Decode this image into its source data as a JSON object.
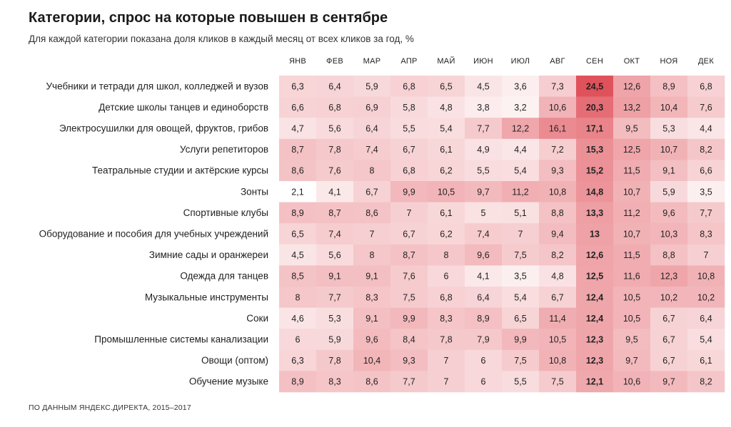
{
  "title": "Категории, спрос на которые повышен в сентябре",
  "subtitle": "Для каждой категории показана доля кликов в каждый месяц от всех кликов за год, %",
  "source": "ПО ДАННЫМ ЯНДЕКС.ДИРЕКТА, 2015–2017",
  "chart_data": {
    "type": "heatmap",
    "months": [
      "ЯНВ",
      "ФЕВ",
      "МАР",
      "АПР",
      "МАЙ",
      "ИЮН",
      "ИЮЛ",
      "АВГ",
      "СЕН",
      "ОКТ",
      "НОЯ",
      "ДЕК"
    ],
    "highlight_month_index": 8,
    "color_low": "#ffffff",
    "color_high": "#e0525b",
    "rows": [
      {
        "category": "Учебники и тетради для школ, колледжей и вузов",
        "labels": [
          "6,3",
          "6,4",
          "5,9",
          "6,8",
          "6,5",
          "4,5",
          "3,6",
          "7,3",
          "24,5",
          "12,6",
          "8,9",
          "6,8"
        ],
        "values": [
          6.3,
          6.4,
          5.9,
          6.8,
          6.5,
          4.5,
          3.6,
          7.3,
          24.5,
          12.6,
          8.9,
          6.8
        ]
      },
      {
        "category": "Детские школы танцев и единоборств",
        "labels": [
          "6,6",
          "6,8",
          "6,9",
          "5,8",
          "4,8",
          "3,8",
          "3,2",
          "10,6",
          "20,3",
          "13,2",
          "10,4",
          "7,6"
        ],
        "values": [
          6.6,
          6.8,
          6.9,
          5.8,
          4.8,
          3.8,
          3.2,
          10.6,
          20.3,
          13.2,
          10.4,
          7.6
        ]
      },
      {
        "category": "Электросушилки для овощей, фруктов, грибов",
        "labels": [
          "4,7",
          "5,6",
          "6,4",
          "5,5",
          "5,4",
          "7,7",
          "12,2",
          "16,1",
          "17,1",
          "9,5",
          "5,3",
          "4,4"
        ],
        "values": [
          4.7,
          5.6,
          6.4,
          5.5,
          5.4,
          7.7,
          12.2,
          16.1,
          17.1,
          9.5,
          5.3,
          4.4
        ]
      },
      {
        "category": "Услуги репетиторов",
        "labels": [
          "8,7",
          "7,8",
          "7,4",
          "6,7",
          "6,1",
          "4,9",
          "4,4",
          "7,2",
          "15,3",
          "12,5",
          "10,7",
          "8,2"
        ],
        "values": [
          8.7,
          7.8,
          7.4,
          6.7,
          6.1,
          4.9,
          4.4,
          7.2,
          15.3,
          12.5,
          10.7,
          8.2
        ]
      },
      {
        "category": "Театральные студии и актёрские курсы",
        "labels": [
          "8,6",
          "7,6",
          "8",
          "6,8",
          "6,2",
          "5,5",
          "5,4",
          "9,3",
          "15,2",
          "11,5",
          "9,1",
          "6,6"
        ],
        "values": [
          8.6,
          7.6,
          8,
          6.8,
          6.2,
          5.5,
          5.4,
          9.3,
          15.2,
          11.5,
          9.1,
          6.6
        ]
      },
      {
        "category": "Зонты",
        "labels": [
          "2,1",
          "4,1",
          "6,7",
          "9,9",
          "10,5",
          "9,7",
          "11,2",
          "10,8",
          "14,8",
          "10,7",
          "5,9",
          "3,5"
        ],
        "values": [
          2.1,
          4.1,
          6.7,
          9.9,
          10.5,
          9.7,
          11.2,
          10.8,
          14.8,
          10.7,
          5.9,
          3.5
        ]
      },
      {
        "category": "Спортивные клубы",
        "labels": [
          "8,9",
          "8,7",
          "8,6",
          "7",
          "6,1",
          "5",
          "5,1",
          "8,8",
          "13,3",
          "11,2",
          "9,6",
          "7,7"
        ],
        "values": [
          8.9,
          8.7,
          8.6,
          7,
          6.1,
          5,
          5.1,
          8.8,
          13.3,
          11.2,
          9.6,
          7.7
        ]
      },
      {
        "category": "Оборудование и пособия для учебных учреждений",
        "labels": [
          "6,5",
          "7,4",
          "7",
          "6,7",
          "6,2",
          "7,4",
          "7",
          "9,4",
          "13",
          "10,7",
          "10,3",
          "8,3"
        ],
        "values": [
          6.5,
          7.4,
          7,
          6.7,
          6.2,
          7.4,
          7,
          9.4,
          13,
          10.7,
          10.3,
          8.3
        ]
      },
      {
        "category": "Зимние сады и оранжереи",
        "labels": [
          "4,5",
          "5,6",
          "8",
          "8,7",
          "8",
          "9,6",
          "7,5",
          "8,2",
          "12,6",
          "11,5",
          "8,8",
          "7"
        ],
        "values": [
          4.5,
          5.6,
          8,
          8.7,
          8,
          9.6,
          7.5,
          8.2,
          12.6,
          11.5,
          8.8,
          7
        ]
      },
      {
        "category": "Одежда для танцев",
        "labels": [
          "8,5",
          "9,1",
          "9,1",
          "7,6",
          "6",
          "4,1",
          "3,5",
          "4,8",
          "12,5",
          "11,6",
          "12,3",
          "10,8"
        ],
        "values": [
          8.5,
          9.1,
          9.1,
          7.6,
          6,
          4.1,
          3.5,
          4.8,
          12.5,
          11.6,
          12.3,
          10.8
        ]
      },
      {
        "category": "Музыкальные инструменты",
        "labels": [
          "8",
          "7,7",
          "8,3",
          "7,5",
          "6,8",
          "6,4",
          "5,4",
          "6,7",
          "12,4",
          "10,5",
          "10,2",
          "10,2"
        ],
        "values": [
          8,
          7.7,
          8.3,
          7.5,
          6.8,
          6.4,
          5.4,
          6.7,
          12.4,
          10.5,
          10.2,
          10.2
        ]
      },
      {
        "category": "Соки",
        "labels": [
          "4,6",
          "5,3",
          "9,1",
          "9,9",
          "8,3",
          "8,9",
          "6,5",
          "11,4",
          "12,4",
          "10,5",
          "6,7",
          "6,4"
        ],
        "values": [
          4.6,
          5.3,
          9.1,
          9.9,
          8.3,
          8.9,
          6.5,
          11.4,
          12.4,
          10.5,
          6.7,
          6.4
        ]
      },
      {
        "category": "Промышленные системы канализации",
        "labels": [
          "6",
          "5,9",
          "9,6",
          "8,4",
          "7,8",
          "7,9",
          "9,9",
          "10,5",
          "12,3",
          "9,5",
          "6,7",
          "5,4"
        ],
        "values": [
          6,
          5.9,
          9.6,
          8.4,
          7.8,
          7.9,
          9.9,
          10.5,
          12.3,
          9.5,
          6.7,
          5.4
        ]
      },
      {
        "category": "Овощи (оптом)",
        "labels": [
          "6,3",
          "7,8",
          "10,4",
          "9,3",
          "7",
          "6",
          "7,5",
          "10,8",
          "12,3",
          "9,7",
          "6,7",
          "6,1"
        ],
        "values": [
          6.3,
          7.8,
          10.4,
          9.3,
          7,
          6,
          7.5,
          10.8,
          12.3,
          9.7,
          6.7,
          6.1
        ]
      },
      {
        "category": "Обучение музыке",
        "labels": [
          "8,9",
          "8,3",
          "8,6",
          "7,7",
          "7",
          "6",
          "5,5",
          "7,5",
          "12,1",
          "10,6",
          "9,7",
          "8,2"
        ],
        "values": [
          8.9,
          8.3,
          8.6,
          7.7,
          7,
          6,
          5.5,
          7.5,
          12.1,
          10.6,
          9.7,
          8.2
        ]
      }
    ]
  }
}
